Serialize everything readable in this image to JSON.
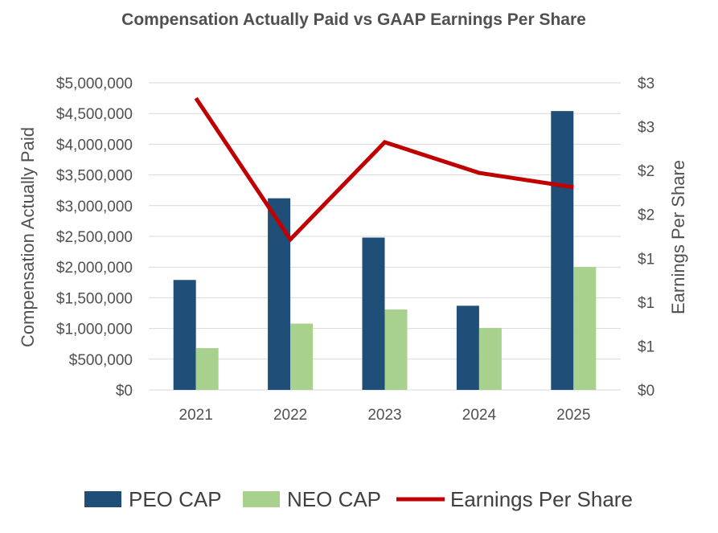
{
  "chart_data": {
    "type": "bar",
    "title": "Compensation Actually Paid vs GAAP Earnings Per Share",
    "categories": [
      "2021",
      "2022",
      "2023",
      "2024",
      "2025"
    ],
    "ylabel": "Compensation Actually Paid",
    "y2label": "Earnings Per Share",
    "ylim": [
      0,
      5000000
    ],
    "y2lim": [
      0,
      3
    ],
    "yticks": [
      "$0",
      "$500,000",
      "$1,000,000",
      "$1,500,000",
      "$2,000,000",
      "$2,500,000",
      "$3,000,000",
      "$3,500,000",
      "$4,000,000",
      "$4,500,000",
      "$5,000,000"
    ],
    "y2ticks": [
      "$0",
      "$1",
      "$1",
      "$1",
      "$2",
      "$2",
      "$3",
      "$3"
    ],
    "grid": true,
    "legend": "bottom",
    "series": [
      {
        "name": "PEO CAP",
        "kind": "bar",
        "color": "#1f4e79",
        "values": [
          1790000,
          3120000,
          2480000,
          1370000,
          4540000
        ]
      },
      {
        "name": "NEO CAP",
        "kind": "bar",
        "color": "#a9d18e",
        "values": [
          680000,
          1080000,
          1310000,
          1010000,
          2000000
        ]
      },
      {
        "name": "Earnings Per Share",
        "kind": "line",
        "axis": "right",
        "color": "#c00000",
        "values": [
          2.85,
          1.47,
          2.42,
          2.12,
          1.98
        ]
      }
    ]
  }
}
